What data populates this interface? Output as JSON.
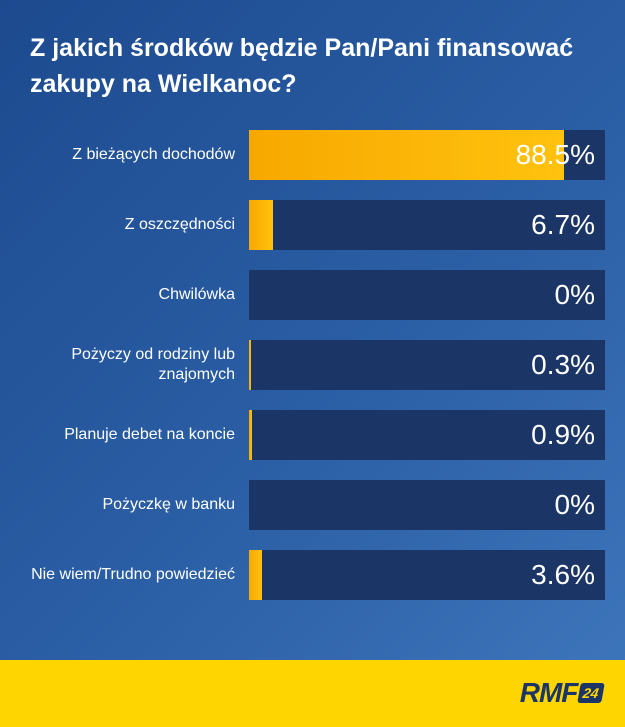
{
  "chart_data": {
    "type": "bar",
    "orientation": "horizontal",
    "title": "Z jakich środków będzie Pan/Pani finansować zakupy na Wielkanoc?",
    "xlim": [
      0,
      100
    ],
    "categories": [
      "Z bieżących dochodów",
      "Z oszczędności",
      "Chwilówka",
      "Pożyczy od rodziny lub znajomych",
      "Planuje debet na koncie",
      "Pożyczkę w banku",
      "Nie wiem/Trudno powiedzieć"
    ],
    "values": [
      88.5,
      6.7,
      0,
      0.3,
      0.9,
      0,
      3.6
    ],
    "value_labels": [
      "88.5%",
      "6.7%",
      "0%",
      "0.3%",
      "0.9%",
      "0%",
      "3.6%"
    ],
    "colors": {
      "bar": "#ffc20e",
      "track": "#1b3566",
      "text": "#ffffff"
    }
  },
  "footer": {
    "logo_text": "RMF",
    "logo_badge": "24",
    "background": "#ffd500"
  }
}
